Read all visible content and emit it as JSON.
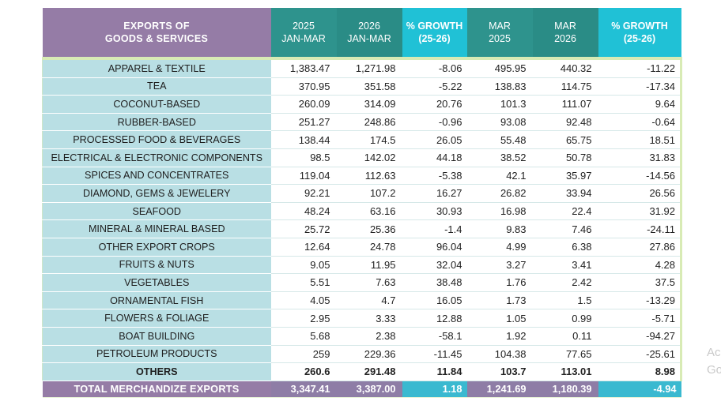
{
  "header": {
    "col0_line1": "EXPORTS OF",
    "col0_line2": "GOODS & SERVICES",
    "col1_line1": "2025",
    "col1_line2": "JAN-MAR",
    "col2_line1": "2026",
    "col2_line2": "JAN-MAR",
    "col3_line1": "% GROWTH",
    "col3_line2": "(25-26)",
    "col4_line1": "MAR",
    "col4_line2": "2025",
    "col5_line1": "MAR",
    "col5_line2": "2026",
    "col6_line1": "% GROWTH",
    "col6_line2": "(25-26)"
  },
  "rows": [
    {
      "label": "APPAREL & TEXTILE",
      "jm2025": "1,383.47",
      "jm2026": "1,271.98",
      "g1": "-8.06",
      "m2025": "495.95",
      "m2026": "440.32",
      "g2": "-11.22"
    },
    {
      "label": "TEA",
      "jm2025": "370.95",
      "jm2026": "351.58",
      "g1": "-5.22",
      "m2025": "138.83",
      "m2026": "114.75",
      "g2": "-17.34"
    },
    {
      "label": "COCONUT-BASED",
      "jm2025": "260.09",
      "jm2026": "314.09",
      "g1": "20.76",
      "m2025": "101.3",
      "m2026": "111.07",
      "g2": "9.64"
    },
    {
      "label": "RUBBER-BASED",
      "jm2025": "251.27",
      "jm2026": "248.86",
      "g1": "-0.96",
      "m2025": "93.08",
      "m2026": "92.48",
      "g2": "-0.64"
    },
    {
      "label": "PROCESSED FOOD & BEVERAGES",
      "jm2025": "138.44",
      "jm2026": "174.5",
      "g1": "26.05",
      "m2025": "55.48",
      "m2026": "65.75",
      "g2": "18.51"
    },
    {
      "label": "ELECTRICAL & ELECTRONIC  COMPONENTS",
      "jm2025": "98.5",
      "jm2026": "142.02",
      "g1": "44.18",
      "m2025": "38.52",
      "m2026": "50.78",
      "g2": "31.83"
    },
    {
      "label": "SPICES AND CONCENTRATES",
      "jm2025": "119.04",
      "jm2026": "112.63",
      "g1": "-5.38",
      "m2025": "42.1",
      "m2026": "35.97",
      "g2": "-14.56"
    },
    {
      "label": "DIAMOND, GEMS & JEWELERY",
      "jm2025": "92.21",
      "jm2026": "107.2",
      "g1": "16.27",
      "m2025": "26.82",
      "m2026": "33.94",
      "g2": "26.56"
    },
    {
      "label": "SEAFOOD",
      "jm2025": "48.24",
      "jm2026": "63.16",
      "g1": "30.93",
      "m2025": "16.98",
      "m2026": "22.4",
      "g2": "31.92"
    },
    {
      "label": "MINERAL & MINERAL BASED",
      "jm2025": "25.72",
      "jm2026": "25.36",
      "g1": "-1.4",
      "m2025": "9.83",
      "m2026": "7.46",
      "g2": "-24.11"
    },
    {
      "label": "OTHER EXPORT CROPS",
      "jm2025": "12.64",
      "jm2026": "24.78",
      "g1": "96.04",
      "m2025": "4.99",
      "m2026": "6.38",
      "g2": "27.86"
    },
    {
      "label": "FRUITS & NUTS",
      "jm2025": "9.05",
      "jm2026": "11.95",
      "g1": "32.04",
      "m2025": "3.27",
      "m2026": "3.41",
      "g2": "4.28"
    },
    {
      "label": "VEGETABLES",
      "jm2025": "5.51",
      "jm2026": "7.63",
      "g1": "38.48",
      "m2025": "1.76",
      "m2026": "2.42",
      "g2": "37.5"
    },
    {
      "label": "ORNAMENTAL FISH",
      "jm2025": "4.05",
      "jm2026": "4.7",
      "g1": "16.05",
      "m2025": "1.73",
      "m2026": "1.5",
      "g2": "-13.29"
    },
    {
      "label": "FLOWERS & FOLIAGE",
      "jm2025": "2.95",
      "jm2026": "3.33",
      "g1": "12.88",
      "m2025": "1.05",
      "m2026": "0.99",
      "g2": "-5.71"
    },
    {
      "label": "BOAT BUILDING",
      "jm2025": "5.68",
      "jm2026": "2.38",
      "g1": "-58.1",
      "m2025": "1.92",
      "m2026": "0.11",
      "g2": "-94.27"
    },
    {
      "label": "PETROLEUM PRODUCTS",
      "jm2025": "259",
      "jm2026": "229.36",
      "g1": "-11.45",
      "m2025": "104.38",
      "m2026": "77.65",
      "g2": "-25.61"
    },
    {
      "label": "OTHERS",
      "jm2025": "260.6",
      "jm2026": "291.48",
      "g1": "11.84",
      "m2025": "103.7",
      "m2026": "113.01",
      "g2": "8.98"
    }
  ],
  "total": {
    "label": "TOTAL MERCHANDIZE EXPORTS",
    "jm2025": "3,347.41",
    "jm2026": "3,387.00",
    "g1": "1.18",
    "m2025": "1,241.69",
    "m2026": "1,180.39",
    "g2": "-4.94"
  },
  "side_text": {
    "line1": "Ac",
    "line2": "Go"
  }
}
